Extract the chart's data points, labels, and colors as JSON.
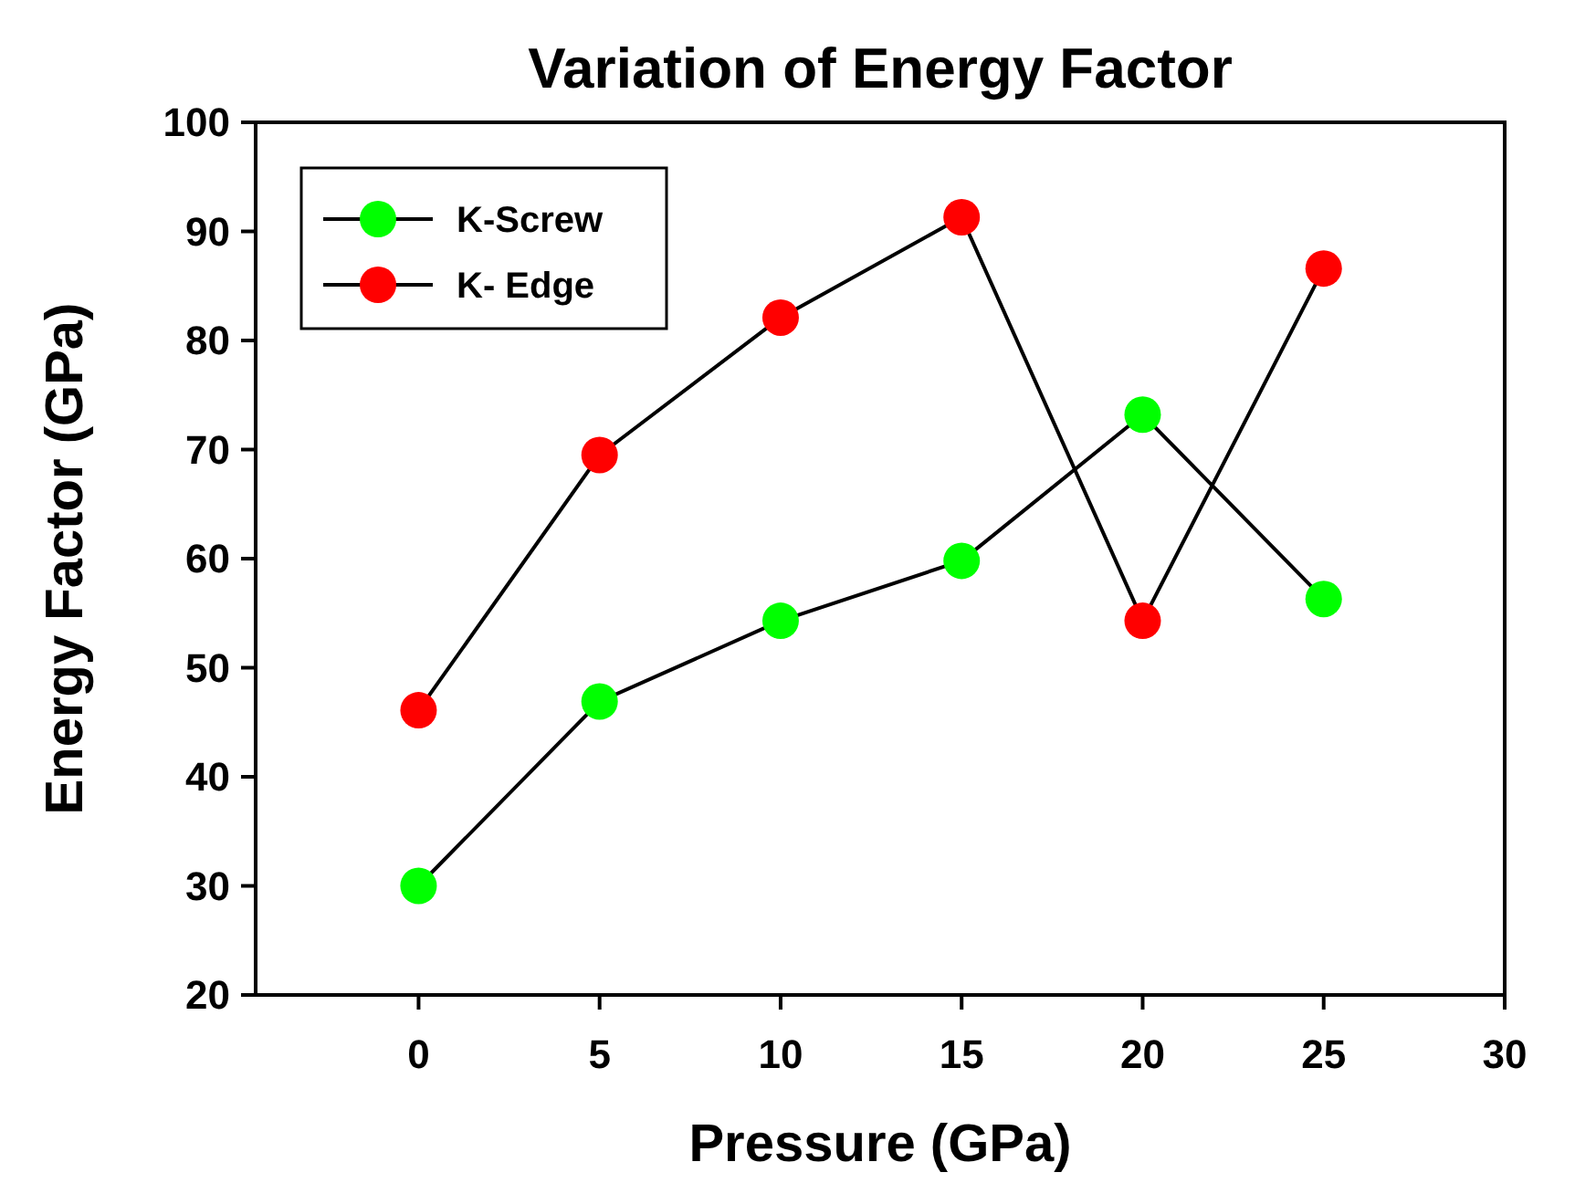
{
  "chart_data": {
    "type": "line",
    "title": "Variation of Energy Factor",
    "xlabel": "Pressure (GPa)",
    "ylabel": "Energy Factor (GPa)",
    "x": [
      0,
      5,
      10,
      15,
      20,
      25
    ],
    "series": [
      {
        "name": "K-Screw",
        "color": "#00ff00",
        "values": [
          30.0,
          46.9,
          54.3,
          59.8,
          73.2,
          56.3
        ]
      },
      {
        "name": "K- Edge",
        "color": "#ff0000",
        "values": [
          46.1,
          69.5,
          82.1,
          91.3,
          54.3,
          86.6
        ]
      }
    ],
    "xlim": [
      -4.5,
      30
    ],
    "xticks": [
      0,
      5,
      10,
      15,
      20,
      25,
      30
    ],
    "ylim": [
      20,
      100
    ],
    "yticks": [
      20,
      30,
      40,
      50,
      60,
      70,
      80,
      90,
      100
    ],
    "legend": "top left",
    "marker": "circle",
    "line_style": "solid",
    "grid": false
  }
}
